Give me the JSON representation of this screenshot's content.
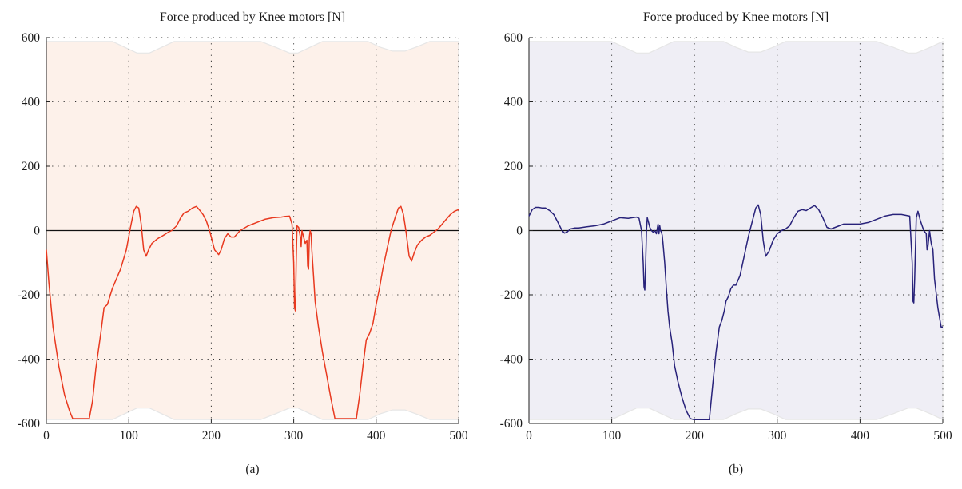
{
  "chart_data": [
    {
      "type": "line",
      "title": "Force produced by Knee motors [N]",
      "caption": "(a)",
      "xlim": [
        0,
        500
      ],
      "ylim": [
        -600,
        600
      ],
      "xticks": [
        0,
        100,
        200,
        300,
        400,
        500
      ],
      "yticks": [
        600,
        400,
        200,
        0,
        -200,
        -400,
        -600
      ],
      "grid": true,
      "colors": {
        "line": "#e8391f",
        "band": "#fdf1ea",
        "band_edge": "#e6e6e6"
      },
      "band": {
        "upper": [
          [
            0,
            588
          ],
          [
            80,
            588
          ],
          [
            95,
            570
          ],
          [
            110,
            552
          ],
          [
            125,
            552
          ],
          [
            140,
            570
          ],
          [
            155,
            588
          ],
          [
            260,
            588
          ],
          [
            278,
            570
          ],
          [
            295,
            552
          ],
          [
            305,
            552
          ],
          [
            320,
            570
          ],
          [
            335,
            588
          ],
          [
            390,
            588
          ],
          [
            405,
            570
          ],
          [
            420,
            558
          ],
          [
            435,
            558
          ],
          [
            450,
            572
          ],
          [
            465,
            588
          ],
          [
            500,
            588
          ]
        ],
        "lower": [
          [
            0,
            -588
          ],
          [
            80,
            -588
          ],
          [
            95,
            -570
          ],
          [
            110,
            -552
          ],
          [
            125,
            -552
          ],
          [
            140,
            -570
          ],
          [
            155,
            -588
          ],
          [
            260,
            -588
          ],
          [
            278,
            -570
          ],
          [
            295,
            -552
          ],
          [
            305,
            -552
          ],
          [
            320,
            -570
          ],
          [
            335,
            -588
          ],
          [
            390,
            -588
          ],
          [
            405,
            -570
          ],
          [
            420,
            -558
          ],
          [
            435,
            -558
          ],
          [
            450,
            -572
          ],
          [
            465,
            -588
          ],
          [
            500,
            -588
          ]
        ]
      },
      "series": [
        {
          "x": [
            0,
            3,
            8,
            15,
            22,
            28,
            32,
            52,
            56,
            60,
            66,
            70,
            74,
            80,
            90,
            97,
            102,
            106,
            109,
            112,
            115,
            118,
            121,
            124,
            128,
            135,
            142,
            148,
            152,
            158,
            163,
            167,
            172,
            177,
            182,
            187,
            190,
            194,
            198,
            204,
            209,
            212,
            216,
            220,
            224,
            228,
            235,
            245,
            255,
            265,
            275,
            285,
            290,
            295,
            298,
            300,
            301,
            302,
            303,
            304,
            306,
            308,
            309,
            310,
            312,
            314,
            316,
            317,
            318,
            319,
            320,
            321,
            322,
            324,
            326,
            330,
            335,
            340,
            345,
            350,
            352,
            356,
            376,
            380,
            384,
            388,
            392,
            396,
            400,
            404,
            408,
            413,
            418,
            423,
            427,
            430,
            433,
            436,
            440,
            443,
            446,
            450,
            455,
            460,
            465,
            470,
            475,
            480,
            485,
            490,
            495,
            500
          ],
          "y": [
            -60,
            -160,
            -300,
            -420,
            -510,
            -560,
            -585,
            -585,
            -530,
            -430,
            -320,
            -240,
            -230,
            -180,
            -120,
            -60,
            10,
            60,
            75,
            70,
            20,
            -60,
            -80,
            -60,
            -40,
            -25,
            -15,
            -5,
            0,
            15,
            40,
            55,
            60,
            70,
            75,
            60,
            50,
            30,
            0,
            -60,
            -75,
            -60,
            -25,
            -10,
            -20,
            -20,
            0,
            15,
            25,
            35,
            40,
            42,
            44,
            45,
            20,
            -100,
            -240,
            -250,
            -100,
            15,
            10,
            -20,
            -50,
            0,
            -20,
            -40,
            -30,
            -110,
            -120,
            -20,
            0,
            -10,
            -60,
            -140,
            -220,
            -300,
            -380,
            -450,
            -520,
            -585,
            -585,
            -585,
            -585,
            -510,
            -420,
            -340,
            -320,
            -290,
            -230,
            -180,
            -120,
            -60,
            0,
            40,
            70,
            75,
            50,
            0,
            -80,
            -95,
            -70,
            -45,
            -30,
            -20,
            -15,
            -5,
            5,
            20,
            35,
            50,
            60,
            65
          ]
        }
      ]
    },
    {
      "type": "line",
      "title": "Force produced by Knee motors [N]",
      "caption": "(b)",
      "xlim": [
        0,
        500
      ],
      "ylim": [
        -600,
        600
      ],
      "xticks": [
        0,
        100,
        200,
        300,
        400,
        500
      ],
      "yticks": [
        600,
        400,
        200,
        0,
        -200,
        -400,
        -600
      ],
      "grid": true,
      "colors": {
        "line": "#28227a",
        "band": "#efeef5",
        "band_edge": "#e6e6e6"
      },
      "band": {
        "upper": [
          [
            0,
            588
          ],
          [
            100,
            588
          ],
          [
            115,
            570
          ],
          [
            130,
            552
          ],
          [
            145,
            552
          ],
          [
            160,
            570
          ],
          [
            175,
            588
          ],
          [
            235,
            588
          ],
          [
            250,
            570
          ],
          [
            265,
            555
          ],
          [
            280,
            555
          ],
          [
            295,
            570
          ],
          [
            310,
            588
          ],
          [
            420,
            588
          ],
          [
            440,
            570
          ],
          [
            458,
            552
          ],
          [
            468,
            552
          ],
          [
            485,
            570
          ],
          [
            500,
            588
          ]
        ],
        "lower": [
          [
            0,
            -588
          ],
          [
            100,
            -588
          ],
          [
            115,
            -570
          ],
          [
            130,
            -552
          ],
          [
            145,
            -552
          ],
          [
            160,
            -570
          ],
          [
            175,
            -588
          ],
          [
            235,
            -588
          ],
          [
            250,
            -570
          ],
          [
            265,
            -555
          ],
          [
            280,
            -555
          ],
          [
            295,
            -570
          ],
          [
            310,
            -588
          ],
          [
            420,
            -588
          ],
          [
            440,
            -570
          ],
          [
            458,
            -552
          ],
          [
            468,
            -552
          ],
          [
            485,
            -570
          ],
          [
            500,
            -588
          ]
        ]
      },
      "series": [
        {
          "x": [
            0,
            4,
            8,
            12,
            16,
            20,
            25,
            30,
            35,
            40,
            43,
            46,
            50,
            55,
            60,
            70,
            80,
            90,
            100,
            110,
            120,
            125,
            130,
            133,
            136,
            138,
            139,
            140,
            141,
            142,
            143,
            144,
            146,
            148,
            150,
            152,
            154,
            156,
            157,
            158,
            159,
            160,
            161,
            162,
            164,
            166,
            168,
            170,
            173,
            176,
            180,
            185,
            190,
            195,
            199,
            200,
            201,
            206,
            210,
            214,
            218,
            222,
            226,
            230,
            233,
            236,
            238,
            241,
            244,
            247,
            250,
            255,
            260,
            265,
            270,
            274,
            277,
            280,
            283,
            286,
            290,
            295,
            300,
            305,
            310,
            315,
            320,
            325,
            330,
            335,
            340,
            345,
            350,
            355,
            360,
            365,
            370,
            375,
            380,
            390,
            400,
            410,
            420,
            430,
            440,
            450,
            460,
            463,
            464,
            465,
            466,
            467,
            468,
            470,
            473,
            477,
            480,
            481,
            482,
            484,
            486,
            488,
            490,
            494,
            498,
            500
          ],
          "y": [
            45,
            65,
            72,
            72,
            70,
            70,
            62,
            50,
            25,
            0,
            -8,
            -5,
            5,
            8,
            8,
            12,
            15,
            20,
            30,
            40,
            38,
            40,
            42,
            38,
            0,
            -100,
            -175,
            -185,
            -100,
            0,
            40,
            30,
            10,
            0,
            -5,
            0,
            -10,
            20,
            -10,
            15,
            0,
            -5,
            -15,
            -40,
            -100,
            -180,
            -250,
            -300,
            -350,
            -420,
            -470,
            -520,
            -560,
            -585,
            -588,
            -588,
            -588,
            -588,
            -588,
            -588,
            -588,
            -480,
            -380,
            -300,
            -280,
            -250,
            -220,
            -205,
            -180,
            -170,
            -170,
            -140,
            -80,
            -20,
            30,
            70,
            80,
            50,
            -30,
            -80,
            -65,
            -30,
            -10,
            0,
            5,
            15,
            40,
            60,
            65,
            62,
            70,
            78,
            65,
            40,
            10,
            5,
            10,
            15,
            20,
            20,
            20,
            25,
            35,
            45,
            50,
            50,
            45,
            -100,
            -220,
            -225,
            -150,
            -50,
            40,
            60,
            30,
            0,
            -10,
            -60,
            -50,
            0,
            -40,
            -60,
            -150,
            -240,
            -300,
            -300
          ]
        }
      ]
    }
  ]
}
